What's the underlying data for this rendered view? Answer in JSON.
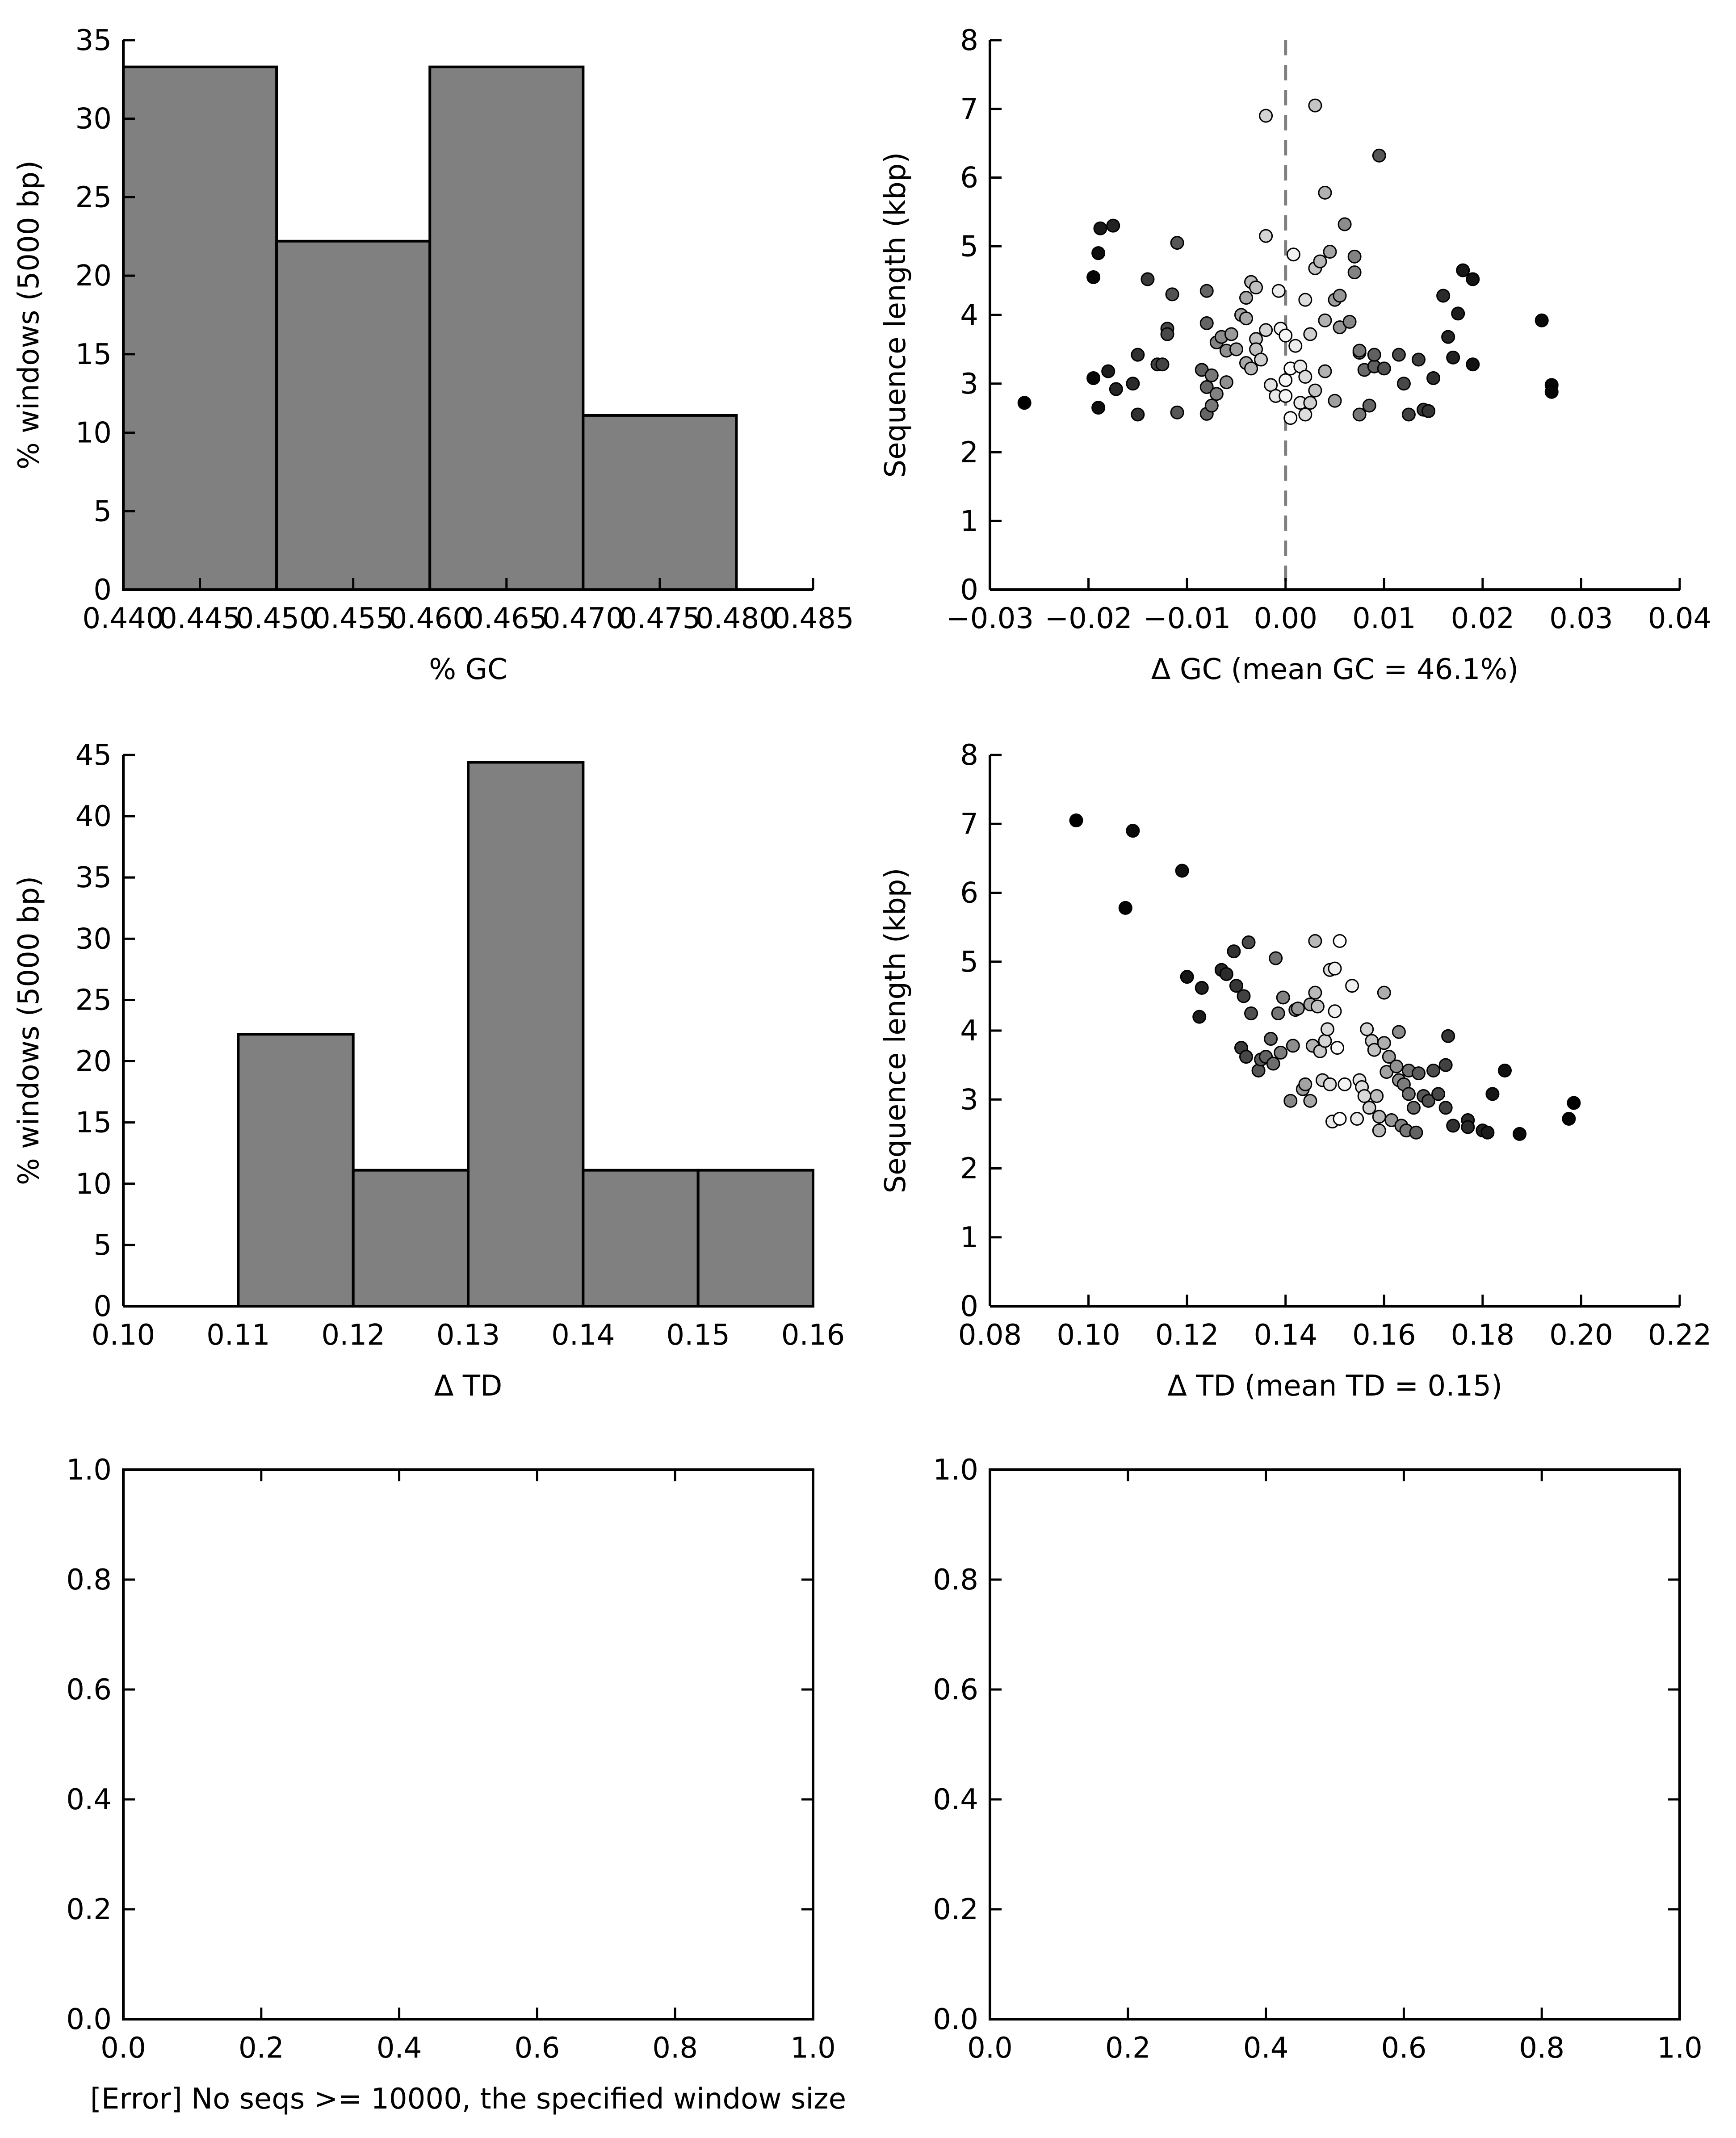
{
  "figure": {
    "colors": {
      "bar_fill": "#808080",
      "axis": "#000000",
      "marker_edge": "#000000",
      "dashed_line": "#808080"
    }
  },
  "chart_data": [
    {
      "type": "bar",
      "title": "",
      "xlabel": "% GC",
      "ylabel": "% windows (5000 bp)",
      "xlim": [
        0.44,
        0.485
      ],
      "ylim": [
        0,
        35
      ],
      "xticks": [
        "0.440",
        "0.445",
        "0.450",
        "0.455",
        "0.460",
        "0.465",
        "0.470",
        "0.475",
        "0.480",
        "0.485"
      ],
      "yticks": [
        "0",
        "5",
        "10",
        "15",
        "20",
        "25",
        "30",
        "35"
      ],
      "grid": false,
      "bins": [
        {
          "start": 0.44,
          "end": 0.45,
          "value": 33.3
        },
        {
          "start": 0.45,
          "end": 0.46,
          "value": 22.2
        },
        {
          "start": 0.46,
          "end": 0.47,
          "value": 33.3
        },
        {
          "start": 0.47,
          "end": 0.48,
          "value": 11.1
        }
      ]
    },
    {
      "type": "scatter",
      "title": "",
      "xlabel": "Δ GC (mean GC = 46.1%)",
      "ylabel": "Sequence length (kbp)",
      "xlim": [
        -0.03,
        0.04
      ],
      "ylim": [
        0,
        8
      ],
      "xticks": [
        "−0.03",
        "−0.02",
        "−0.01",
        "0.00",
        "0.01",
        "0.02",
        "0.03",
        "0.04"
      ],
      "yticks": [
        "0",
        "1",
        "2",
        "3",
        "4",
        "5",
        "6",
        "7",
        "8"
      ],
      "grid": false,
      "vline_x": 0,
      "points": [
        [
          -0.0265,
          2.72
        ],
        [
          -0.0195,
          4.55
        ],
        [
          -0.0195,
          3.08
        ],
        [
          -0.019,
          4.9
        ],
        [
          -0.0188,
          5.26
        ],
        [
          -0.019,
          2.65
        ],
        [
          -0.018,
          3.18
        ],
        [
          -0.0175,
          5.3
        ],
        [
          -0.0172,
          2.92
        ],
        [
          -0.0155,
          3.0
        ],
        [
          -0.015,
          3.42
        ],
        [
          -0.015,
          2.55
        ],
        [
          -0.014,
          4.52
        ],
        [
          -0.013,
          3.28
        ],
        [
          -0.0125,
          3.28
        ],
        [
          -0.012,
          3.8
        ],
        [
          -0.012,
          3.72
        ],
        [
          -0.0115,
          4.3
        ],
        [
          -0.011,
          5.05
        ],
        [
          -0.011,
          2.58
        ],
        [
          -0.0085,
          3.2
        ],
        [
          -0.008,
          4.35
        ],
        [
          -0.008,
          3.88
        ],
        [
          -0.008,
          2.95
        ],
        [
          -0.008,
          2.56
        ],
        [
          -0.0075,
          3.12
        ],
        [
          -0.0075,
          2.68
        ],
        [
          -0.007,
          3.6
        ],
        [
          -0.007,
          2.85
        ],
        [
          -0.0065,
          3.68
        ],
        [
          -0.006,
          3.48
        ],
        [
          -0.006,
          3.02
        ],
        [
          -0.0055,
          3.72
        ],
        [
          -0.005,
          3.5
        ],
        [
          -0.0045,
          4.0
        ],
        [
          -0.004,
          3.95
        ],
        [
          -0.004,
          4.25
        ],
        [
          -0.004,
          3.3
        ],
        [
          -0.0035,
          3.22
        ],
        [
          -0.0035,
          4.48
        ],
        [
          -0.003,
          4.4
        ],
        [
          -0.003,
          3.65
        ],
        [
          -0.003,
          3.5
        ],
        [
          -0.0025,
          3.35
        ],
        [
          -0.002,
          6.9
        ],
        [
          -0.002,
          5.15
        ],
        [
          -0.002,
          3.78
        ],
        [
          -0.0015,
          2.98
        ],
        [
          -0.001,
          2.82
        ],
        [
          -0.0007,
          4.35
        ],
        [
          -0.0005,
          3.8
        ],
        [
          0.0,
          3.7
        ],
        [
          0.0,
          2.82
        ],
        [
          0.0,
          3.05
        ],
        [
          0.0005,
          3.22
        ],
        [
          0.0005,
          2.5
        ],
        [
          0.0008,
          4.88
        ],
        [
          0.001,
          3.55
        ],
        [
          0.0015,
          3.25
        ],
        [
          0.0015,
          2.72
        ],
        [
          0.002,
          4.22
        ],
        [
          0.002,
          3.1
        ],
        [
          0.002,
          2.55
        ],
        [
          0.0025,
          2.72
        ],
        [
          0.0025,
          3.72
        ],
        [
          0.003,
          2.9
        ],
        [
          0.003,
          7.05
        ],
        [
          0.003,
          4.68
        ],
        [
          0.0035,
          4.78
        ],
        [
          0.004,
          3.18
        ],
        [
          0.004,
          3.92
        ],
        [
          0.004,
          5.78
        ],
        [
          0.0045,
          4.92
        ],
        [
          0.005,
          2.75
        ],
        [
          0.005,
          4.22
        ],
        [
          0.0055,
          4.28
        ],
        [
          0.0055,
          3.82
        ],
        [
          0.006,
          5.32
        ],
        [
          0.0065,
          3.9
        ],
        [
          0.007,
          4.85
        ],
        [
          0.007,
          4.62
        ],
        [
          0.0075,
          3.45
        ],
        [
          0.0075,
          3.48
        ],
        [
          0.0075,
          2.55
        ],
        [
          0.008,
          3.2
        ],
        [
          0.0085,
          2.68
        ],
        [
          0.009,
          3.25
        ],
        [
          0.009,
          3.42
        ],
        [
          0.0095,
          6.32
        ],
        [
          0.01,
          3.22
        ],
        [
          0.0115,
          3.42
        ],
        [
          0.012,
          3.0
        ],
        [
          0.0125,
          2.55
        ],
        [
          0.0135,
          3.35
        ],
        [
          0.014,
          2.62
        ],
        [
          0.0145,
          2.6
        ],
        [
          0.015,
          3.08
        ],
        [
          0.016,
          4.28
        ],
        [
          0.0165,
          3.68
        ],
        [
          0.017,
          3.38
        ],
        [
          0.0175,
          4.02
        ],
        [
          0.018,
          4.65
        ],
        [
          0.019,
          4.52
        ],
        [
          0.019,
          3.28
        ],
        [
          0.026,
          3.92
        ],
        [
          0.027,
          2.98
        ],
        [
          0.027,
          2.88
        ]
      ]
    },
    {
      "type": "bar",
      "title": "",
      "xlabel": "Δ TD",
      "ylabel": "% windows (5000 bp)",
      "xlim": [
        0.1,
        0.16
      ],
      "ylim": [
        0,
        45
      ],
      "xticks": [
        "0.10",
        "0.11",
        "0.12",
        "0.13",
        "0.14",
        "0.15",
        "0.16"
      ],
      "yticks": [
        "0",
        "5",
        "10",
        "15",
        "20",
        "25",
        "30",
        "35",
        "40",
        "45"
      ],
      "grid": false,
      "bins": [
        {
          "start": 0.11,
          "end": 0.12,
          "value": 22.2
        },
        {
          "start": 0.12,
          "end": 0.13,
          "value": 11.1
        },
        {
          "start": 0.13,
          "end": 0.14,
          "value": 44.4
        },
        {
          "start": 0.14,
          "end": 0.15,
          "value": 11.1
        },
        {
          "start": 0.15,
          "end": 0.16,
          "value": 11.1
        }
      ]
    },
    {
      "type": "scatter",
      "title": "",
      "xlabel": "Δ TD (mean TD = 0.15)",
      "ylabel": "Sequence length (kbp)",
      "xlim": [
        0.08,
        0.22
      ],
      "ylim": [
        0,
        8
      ],
      "xticks": [
        "0.08",
        "0.10",
        "0.12",
        "0.14",
        "0.16",
        "0.18",
        "0.20",
        "0.22"
      ],
      "yticks": [
        "0",
        "1",
        "2",
        "3",
        "4",
        "5",
        "6",
        "7",
        "8"
      ],
      "grid": false,
      "points": [
        [
          0.0975,
          7.05
        ],
        [
          0.1075,
          5.78
        ],
        [
          0.109,
          6.9
        ],
        [
          0.119,
          6.32
        ],
        [
          0.12,
          4.78
        ],
        [
          0.1225,
          4.2
        ],
        [
          0.123,
          4.62
        ],
        [
          0.127,
          4.88
        ],
        [
          0.128,
          4.82
        ],
        [
          0.1295,
          5.15
        ],
        [
          0.13,
          4.65
        ],
        [
          0.131,
          3.75
        ],
        [
          0.1315,
          4.5
        ],
        [
          0.132,
          3.62
        ],
        [
          0.1325,
          5.28
        ],
        [
          0.133,
          4.25
        ],
        [
          0.1345,
          3.42
        ],
        [
          0.135,
          3.58
        ],
        [
          0.136,
          3.62
        ],
        [
          0.137,
          3.88
        ],
        [
          0.1375,
          3.52
        ],
        [
          0.138,
          5.05
        ],
        [
          0.1385,
          4.25
        ],
        [
          0.139,
          3.68
        ],
        [
          0.1395,
          4.48
        ],
        [
          0.141,
          2.98
        ],
        [
          0.1415,
          3.78
        ],
        [
          0.142,
          4.3
        ],
        [
          0.1425,
          4.32
        ],
        [
          0.1435,
          3.15
        ],
        [
          0.144,
          3.22
        ],
        [
          0.145,
          2.98
        ],
        [
          0.145,
          4.38
        ],
        [
          0.1455,
          3.78
        ],
        [
          0.146,
          5.3
        ],
        [
          0.146,
          4.55
        ],
        [
          0.1465,
          4.35
        ],
        [
          0.147,
          3.7
        ],
        [
          0.1475,
          3.28
        ],
        [
          0.148,
          3.85
        ],
        [
          0.1485,
          4.02
        ],
        [
          0.149,
          4.88
        ],
        [
          0.149,
          3.22
        ],
        [
          0.1495,
          2.68
        ],
        [
          0.15,
          4.9
        ],
        [
          0.15,
          4.28
        ],
        [
          0.1505,
          3.75
        ],
        [
          0.151,
          5.3
        ],
        [
          0.151,
          2.72
        ],
        [
          0.152,
          3.22
        ],
        [
          0.1535,
          4.65
        ],
        [
          0.1545,
          2.72
        ],
        [
          0.155,
          3.28
        ],
        [
          0.1555,
          3.18
        ],
        [
          0.156,
          3.05
        ],
        [
          0.1565,
          4.02
        ],
        [
          0.157,
          2.88
        ],
        [
          0.1575,
          3.85
        ],
        [
          0.158,
          3.72
        ],
        [
          0.1585,
          3.05
        ],
        [
          0.159,
          2.75
        ],
        [
          0.159,
          2.55
        ],
        [
          0.16,
          3.82
        ],
        [
          0.16,
          4.55
        ],
        [
          0.1605,
          3.4
        ],
        [
          0.161,
          3.62
        ],
        [
          0.1615,
          2.7
        ],
        [
          0.1625,
          3.48
        ],
        [
          0.163,
          3.28
        ],
        [
          0.163,
          3.98
        ],
        [
          0.1635,
          2.62
        ],
        [
          0.164,
          3.22
        ],
        [
          0.1645,
          2.55
        ],
        [
          0.165,
          3.42
        ],
        [
          0.165,
          3.08
        ],
        [
          0.166,
          2.88
        ],
        [
          0.1665,
          2.52
        ],
        [
          0.167,
          3.38
        ],
        [
          0.168,
          3.05
        ],
        [
          0.169,
          2.98
        ],
        [
          0.17,
          3.42
        ],
        [
          0.171,
          3.08
        ],
        [
          0.1725,
          2.88
        ],
        [
          0.1725,
          3.5
        ],
        [
          0.173,
          3.92
        ],
        [
          0.174,
          2.62
        ],
        [
          0.177,
          2.7
        ],
        [
          0.177,
          2.6
        ],
        [
          0.18,
          2.55
        ],
        [
          0.181,
          2.52
        ],
        [
          0.182,
          3.08
        ],
        [
          0.1845,
          3.42
        ],
        [
          0.1875,
          2.5
        ],
        [
          0.1975,
          2.72
        ],
        [
          0.1985,
          2.95
        ]
      ]
    },
    {
      "type": "scatter",
      "title": "",
      "xlabel": "[Error] No seqs >= 10000, the specified window size",
      "ylabel": "",
      "xlim": [
        0.0,
        1.0
      ],
      "ylim": [
        0.0,
        1.0
      ],
      "xticks": [
        "0.0",
        "0.2",
        "0.4",
        "0.6",
        "0.8",
        "1.0"
      ],
      "yticks": [
        "0.0",
        "0.2",
        "0.4",
        "0.6",
        "0.8",
        "1.0"
      ],
      "grid": false,
      "points": []
    },
    {
      "type": "scatter",
      "title": "",
      "xlabel": "",
      "ylabel": "",
      "xlim": [
        0.0,
        1.0
      ],
      "ylim": [
        0.0,
        1.0
      ],
      "xticks": [
        "0.0",
        "0.2",
        "0.4",
        "0.6",
        "0.8",
        "1.0"
      ],
      "yticks": [
        "0.0",
        "0.2",
        "0.4",
        "0.6",
        "0.8",
        "1.0"
      ],
      "grid": false,
      "points": []
    }
  ]
}
